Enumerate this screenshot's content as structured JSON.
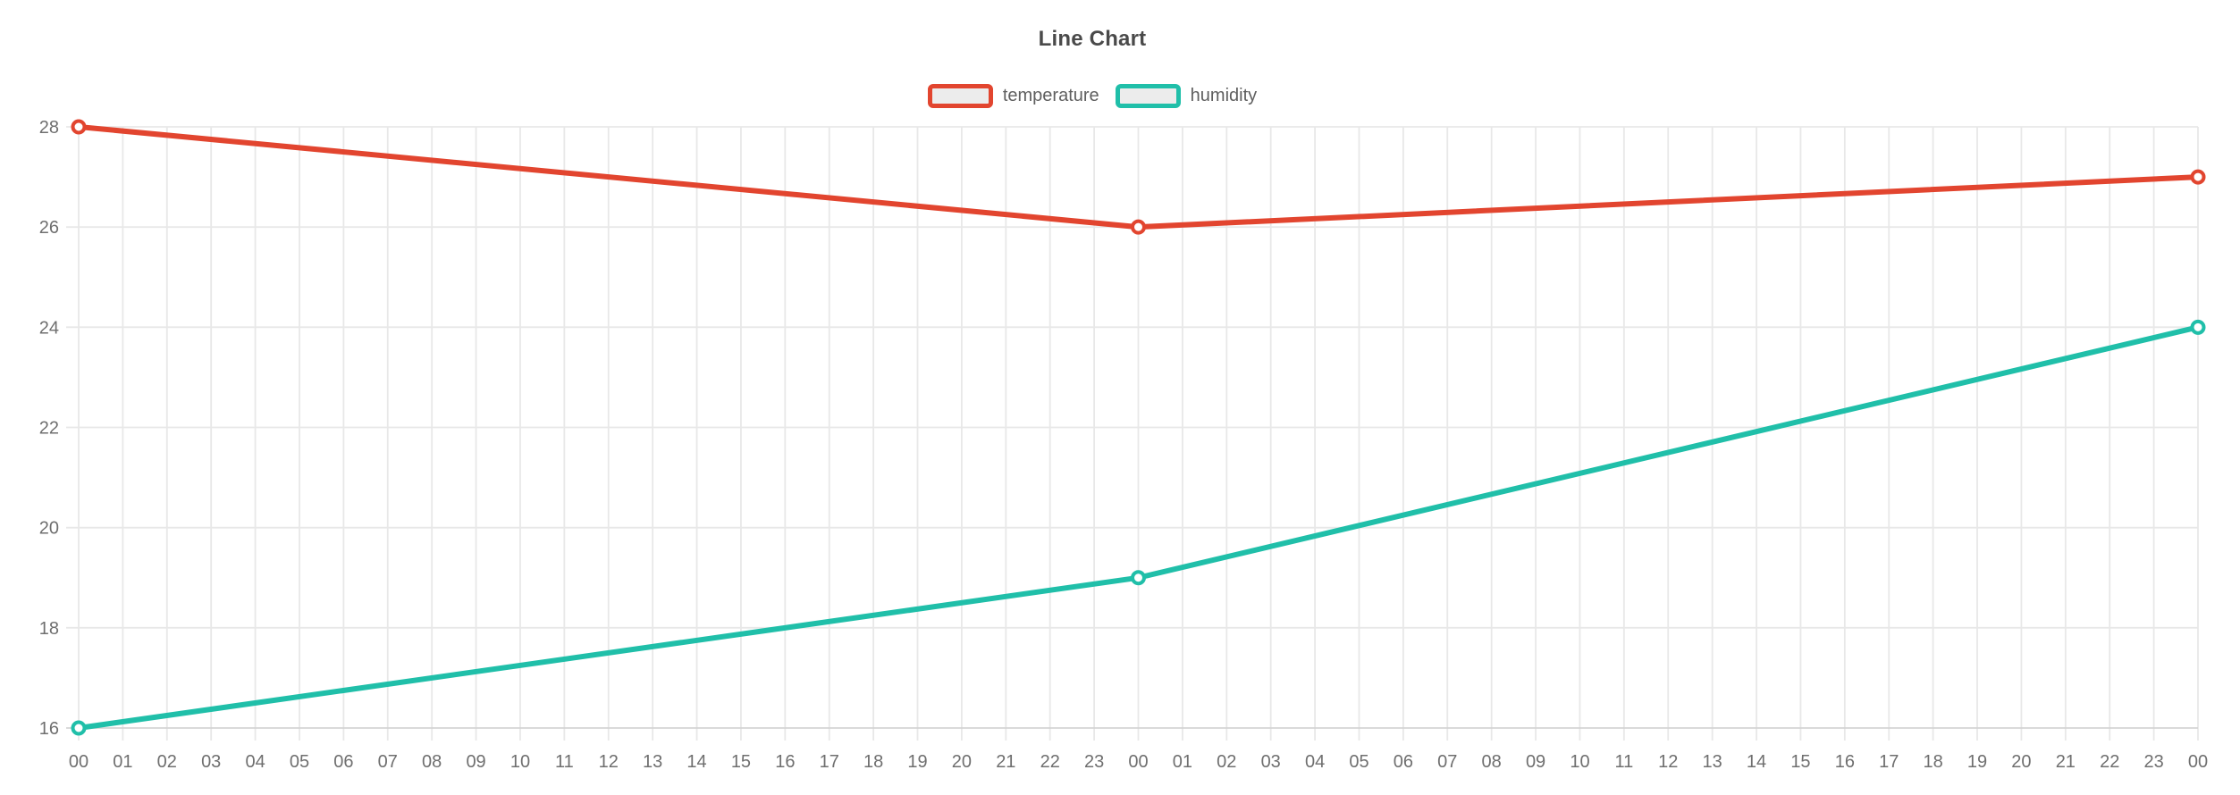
{
  "chart_data": {
    "type": "line",
    "title": "Line Chart",
    "legend_position": "top",
    "grid": true,
    "ylim": [
      16,
      28
    ],
    "y_ticks": [
      16,
      18,
      20,
      22,
      24,
      26,
      28
    ],
    "x_axis": {
      "tick_labels": [
        "00",
        "01",
        "02",
        "03",
        "04",
        "05",
        "06",
        "07",
        "08",
        "09",
        "10",
        "11",
        "12",
        "13",
        "14",
        "15",
        "16",
        "17",
        "18",
        "19",
        "20",
        "21",
        "22",
        "23",
        "00",
        "01",
        "02",
        "03",
        "04",
        "05",
        "06",
        "07",
        "08",
        "09",
        "10",
        "11",
        "12",
        "13",
        "14",
        "15",
        "16",
        "17",
        "18",
        "19",
        "20",
        "21",
        "22",
        "23",
        "00"
      ]
    },
    "series": [
      {
        "name": "temperature",
        "color": "#e2452f",
        "points": [
          {
            "x_index": 0,
            "y": 28
          },
          {
            "x_index": 24,
            "y": 26
          },
          {
            "x_index": 48,
            "y": 27
          }
        ]
      },
      {
        "name": "humidity",
        "color": "#20bfa9",
        "points": [
          {
            "x_index": 0,
            "y": 16
          },
          {
            "x_index": 24,
            "y": 19
          },
          {
            "x_index": 48,
            "y": 24
          }
        ]
      }
    ],
    "colors": {
      "background": "#ffffff",
      "title_text": "#4a4a4a",
      "legend_text": "#5f5f5f",
      "legend_swatch_fill": "#ececec",
      "grid_line": "#e8e8e8",
      "axis_line": "#d4d4d4",
      "tick_label": "#6f6f6f",
      "marker_fill": "#ffffff"
    }
  }
}
